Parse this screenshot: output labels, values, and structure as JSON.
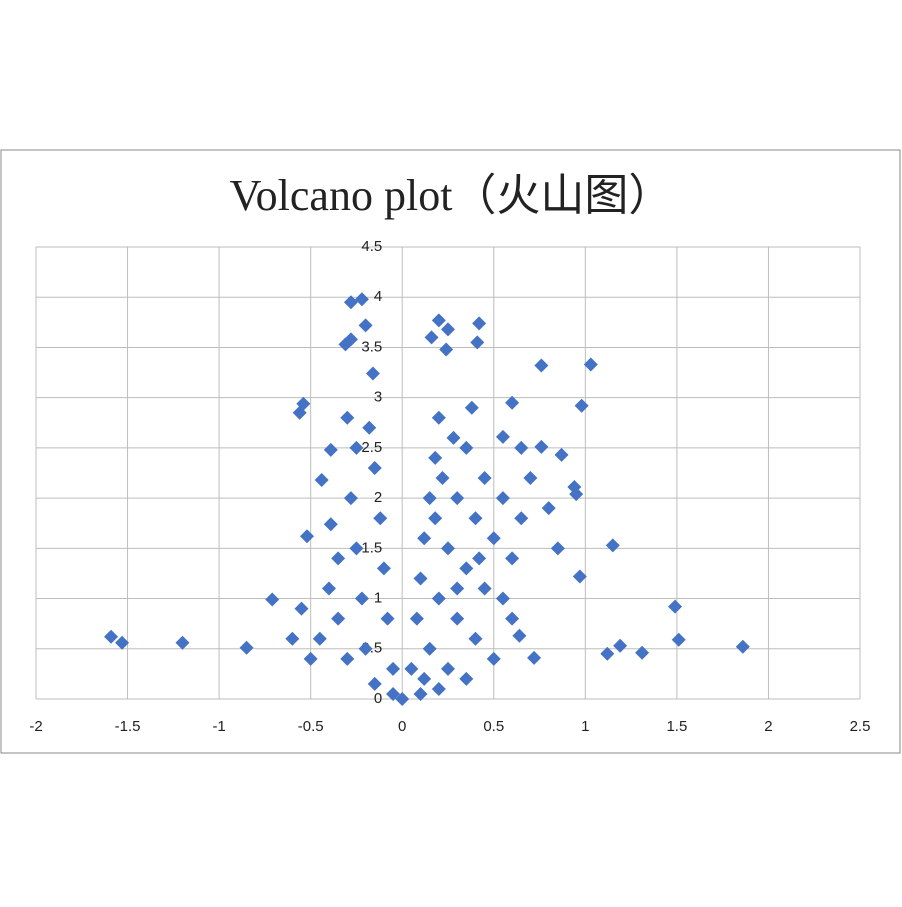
{
  "chart_data": {
    "type": "scatter",
    "title": "Volcano plot（火山图）",
    "color": "#4472c4",
    "grid": true,
    "xlim": [
      -2,
      2.5
    ],
    "xticks": [
      -2,
      -1.5,
      -1,
      -0.5,
      0,
      0.5,
      1,
      1.5,
      2,
      2.5
    ],
    "ylim": [
      0,
      4.5
    ],
    "yticks": [
      0,
      0.5,
      1,
      1.5,
      2,
      2.5,
      3,
      3.5,
      4,
      4.5
    ],
    "x": [
      -1.59,
      -1.53,
      -1.2,
      -0.85,
      -0.71,
      -0.56,
      -0.54,
      -0.28,
      -0.22,
      -0.2,
      -0.31,
      -0.28,
      -0.16,
      -0.52,
      -0.39,
      -0.39,
      -0.44,
      0.2,
      0.25,
      0.24,
      0.16,
      0.42,
      0.41,
      0.76,
      1.03,
      0.98,
      0.6,
      1.15,
      1.49,
      1.51,
      1.86,
      1.31,
      1.19,
      1.12,
      0.72,
      0.64,
      0.97,
      0.94,
      0.95,
      0.87,
      0.76,
      0.55,
      0.05,
      0.08,
      0.1,
      0.12,
      0.15,
      0.18,
      0.2,
      0.15,
      0.2,
      0.25,
      0.3,
      0.35,
      0.25,
      0.3,
      0.35,
      0.4,
      0.45,
      0.4,
      0.45,
      0.5,
      0.55,
      0.5,
      0.55,
      0.6,
      0.65,
      0.7,
      0.2,
      0.35,
      0.22,
      0.28,
      0.38,
      0.12,
      0.18,
      0.3,
      0.42,
      0.6,
      0.8,
      0.85,
      0.65,
      0.1,
      -0.05,
      -0.08,
      -0.1,
      -0.12,
      -0.15,
      -0.18,
      -0.2,
      -0.22,
      -0.25,
      -0.28,
      -0.3,
      -0.35,
      -0.4,
      -0.45,
      -0.5,
      -0.55,
      -0.6,
      -0.25,
      -0.3,
      -0.35,
      -0.15,
      -0.05,
      0
    ],
    "values": [
      0.62,
      0.56,
      0.56,
      0.51,
      0.99,
      2.85,
      2.94,
      3.95,
      3.98,
      3.72,
      3.53,
      3.58,
      3.24,
      1.62,
      1.74,
      2.48,
      2.18,
      3.77,
      3.68,
      3.48,
      3.6,
      3.74,
      3.55,
      3.32,
      3.33,
      2.92,
      2.95,
      1.53,
      0.92,
      0.59,
      0.52,
      0.46,
      0.53,
      0.45,
      0.41,
      0.63,
      1.22,
      2.11,
      2.04,
      2.43,
      2.51,
      2.61,
      0.3,
      0.8,
      1.2,
      1.6,
      2.0,
      2.4,
      2.8,
      0.5,
      1.0,
      1.5,
      2.0,
      2.5,
      0.3,
      0.8,
      1.3,
      1.8,
      2.2,
      0.6,
      1.1,
      1.6,
      2.0,
      0.4,
      1.0,
      1.4,
      1.8,
      2.2,
      0.1,
      0.2,
      2.2,
      2.6,
      2.9,
      0.2,
      1.8,
      1.1,
      1.4,
      0.8,
      1.9,
      1.5,
      2.5,
      0.05,
      0.3,
      0.8,
      1.3,
      1.8,
      2.3,
      2.7,
      0.5,
      1.0,
      1.5,
      2.0,
      0.4,
      0.8,
      1.1,
      0.6,
      0.4,
      0.9,
      0.6,
      2.5,
      2.8,
      1.4,
      0.15,
      0.05,
      0.0
    ]
  }
}
